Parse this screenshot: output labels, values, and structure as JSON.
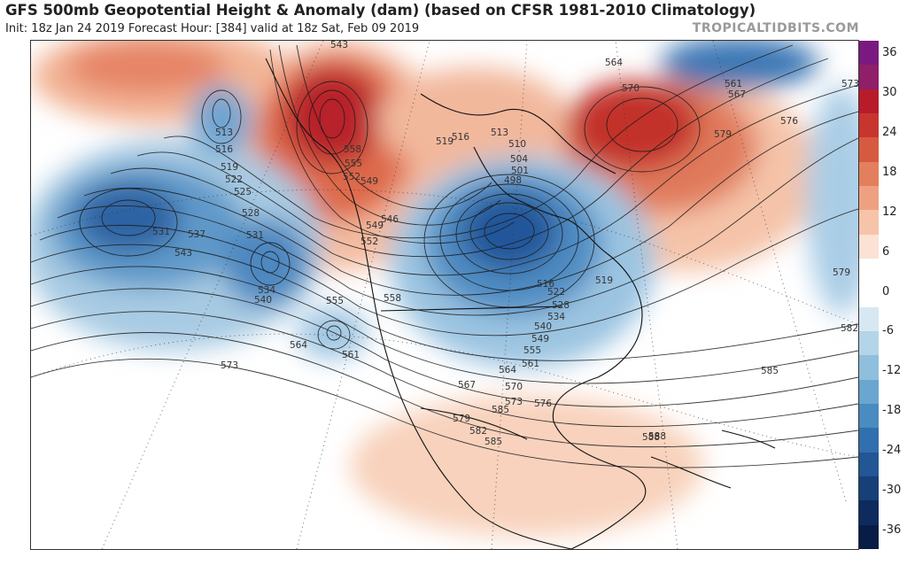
{
  "header": {
    "title": "GFS 500mb Geopotential Height & Anomaly (dam) (based on CFSR 1981-2010 Climatology)",
    "subtitle": "Init: 18z Jan 24 2019   Forecast Hour: [384]   valid at 18z Sat, Feb 09 2019",
    "credit": "TROPICALTIDBITS.COM"
  },
  "colorbar": {
    "ticks": [
      "36",
      "30",
      "24",
      "18",
      "12",
      "6",
      "0",
      "-6",
      "-12",
      "-18",
      "-24",
      "-30",
      "-36"
    ],
    "colors": [
      "#7a1a80",
      "#8f1f68",
      "#b81c2b",
      "#c8352f",
      "#d65a3f",
      "#e37f5c",
      "#eea181",
      "#f6c4a8",
      "#fbe2d4",
      "#ffffff",
      "#ffffff",
      "#d7e8f3",
      "#b4d4e8",
      "#8fbfdc",
      "#6aa6cf",
      "#4a8bc0",
      "#326fae",
      "#225694",
      "#173f78",
      "#0d2b5e",
      "#081c45"
    ]
  },
  "map": {
    "contour_labels": [
      {
        "t": "543"
      },
      {
        "t": "564"
      },
      {
        "t": "561"
      },
      {
        "t": "567"
      },
      {
        "t": "570"
      },
      {
        "t": "573"
      },
      {
        "t": "576"
      },
      {
        "t": "579"
      },
      {
        "t": "513"
      },
      {
        "t": "516"
      },
      {
        "t": "519"
      },
      {
        "t": "522"
      },
      {
        "t": "525"
      },
      {
        "t": "528"
      },
      {
        "t": "531"
      },
      {
        "t": "537"
      },
      {
        "t": "543"
      },
      {
        "t": "531"
      },
      {
        "t": "534"
      },
      {
        "t": "540"
      },
      {
        "t": "558"
      },
      {
        "t": "555"
      },
      {
        "t": "552"
      },
      {
        "t": "549"
      },
      {
        "t": "546"
      },
      {
        "t": "549"
      },
      {
        "t": "552"
      },
      {
        "t": "519"
      },
      {
        "t": "513"
      },
      {
        "t": "516"
      },
      {
        "t": "510"
      },
      {
        "t": "504"
      },
      {
        "t": "501"
      },
      {
        "t": "498"
      },
      {
        "t": "516"
      },
      {
        "t": "519"
      },
      {
        "t": "522"
      },
      {
        "t": "528"
      },
      {
        "t": "534"
      },
      {
        "t": "540"
      },
      {
        "t": "549"
      },
      {
        "t": "555"
      },
      {
        "t": "561"
      },
      {
        "t": "564"
      },
      {
        "t": "567"
      },
      {
        "t": "570"
      },
      {
        "t": "573"
      },
      {
        "t": "576"
      },
      {
        "t": "579"
      },
      {
        "t": "582"
      },
      {
        "t": "585"
      },
      {
        "t": "588"
      },
      {
        "t": "555"
      },
      {
        "t": "558"
      },
      {
        "t": "564"
      },
      {
        "t": "561"
      },
      {
        "t": "573"
      },
      {
        "t": "582"
      },
      {
        "t": "585"
      },
      {
        "t": "588"
      },
      {
        "t": "579"
      },
      {
        "t": "585"
      }
    ]
  }
}
